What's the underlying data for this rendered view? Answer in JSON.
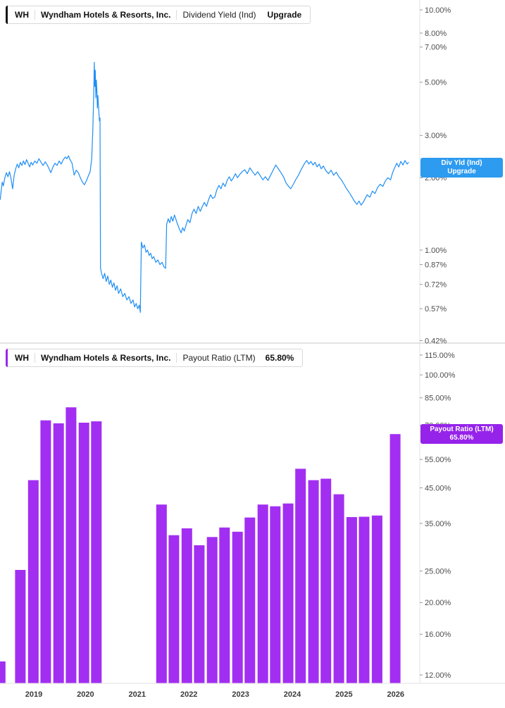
{
  "header_top": {
    "ticker": "WH",
    "company": "Wyndham Hotels & Resorts, Inc.",
    "metric": "Dividend Yield (Ind)",
    "action": "Upgrade"
  },
  "header_bottom": {
    "ticker": "WH",
    "company": "Wyndham Hotels & Resorts, Inc.",
    "metric": "Payout Ratio (LTM)",
    "value": "65.80%"
  },
  "badges": {
    "div_yld": {
      "line1": "Div Yld (Ind)",
      "line2": "Upgrade",
      "color": "#2d9bf0"
    },
    "payout": {
      "line1": "Payout Ratio (LTM)",
      "line2": "65.80%",
      "color": "#9623ea"
    }
  },
  "chart_data": [
    {
      "type": "line",
      "title": "WH Wyndham Hotels & Resorts, Inc. Dividend Yield (Ind)",
      "x_axis": {
        "ticks": [
          2019,
          2020,
          2021,
          2022,
          2023,
          2024,
          2025,
          2026
        ]
      },
      "y_axis": {
        "scale": "log",
        "side": "right",
        "unit": "%",
        "tick_values": [
          10,
          8,
          7,
          5,
          3,
          2,
          1,
          0.87,
          0.72,
          0.57,
          0.42
        ],
        "tick_labels": [
          "10.00%",
          "8.00%",
          "7.00%",
          "5.00%",
          "3.00%",
          "2.00%",
          "1.00%",
          "0.87%",
          "0.72%",
          "0.57%",
          "0.42%"
        ]
      },
      "series": [
        {
          "name": "Dividend Yield (Ind)",
          "color": "#1e8ef5",
          "points": [
            [
              2018.35,
              1.62
            ],
            [
              2018.37,
              1.78
            ],
            [
              2018.39,
              1.92
            ],
            [
              2018.41,
              1.85
            ],
            [
              2018.44,
              2.0
            ],
            [
              2018.47,
              2.1
            ],
            [
              2018.5,
              2.02
            ],
            [
              2018.53,
              2.12
            ],
            [
              2018.56,
              1.98
            ],
            [
              2018.59,
              1.8
            ],
            [
              2018.62,
              2.05
            ],
            [
              2018.65,
              2.18
            ],
            [
              2018.68,
              2.28
            ],
            [
              2018.71,
              2.2
            ],
            [
              2018.74,
              2.32
            ],
            [
              2018.77,
              2.25
            ],
            [
              2018.8,
              2.35
            ],
            [
              2018.83,
              2.27
            ],
            [
              2018.86,
              2.38
            ],
            [
              2018.89,
              2.3
            ],
            [
              2018.92,
              2.22
            ],
            [
              2018.95,
              2.32
            ],
            [
              2018.98,
              2.26
            ],
            [
              2019.02,
              2.35
            ],
            [
              2019.06,
              2.3
            ],
            [
              2019.1,
              2.4
            ],
            [
              2019.14,
              2.32
            ],
            [
              2019.18,
              2.25
            ],
            [
              2019.22,
              2.33
            ],
            [
              2019.26,
              2.26
            ],
            [
              2019.3,
              2.17
            ],
            [
              2019.33,
              2.1
            ],
            [
              2019.37,
              2.22
            ],
            [
              2019.41,
              2.3
            ],
            [
              2019.45,
              2.25
            ],
            [
              2019.49,
              2.35
            ],
            [
              2019.53,
              2.28
            ],
            [
              2019.57,
              2.38
            ],
            [
              2019.61,
              2.44
            ],
            [
              2019.64,
              2.4
            ],
            [
              2019.67,
              2.47
            ],
            [
              2019.7,
              2.38
            ],
            [
              2019.74,
              2.3
            ],
            [
              2019.78,
              2.05
            ],
            [
              2019.82,
              2.15
            ],
            [
              2019.86,
              2.1
            ],
            [
              2019.9,
              2.0
            ],
            [
              2019.94,
              1.92
            ],
            [
              2019.98,
              1.87
            ],
            [
              2020.02,
              1.95
            ],
            [
              2020.06,
              2.05
            ],
            [
              2020.09,
              2.12
            ],
            [
              2020.12,
              2.4
            ],
            [
              2020.14,
              3.1
            ],
            [
              2020.16,
              4.5
            ],
            [
              2020.17,
              6.05
            ],
            [
              2020.18,
              4.8
            ],
            [
              2020.19,
              5.6
            ],
            [
              2020.2,
              4.3
            ],
            [
              2020.21,
              5.1
            ],
            [
              2020.22,
              4.6
            ],
            [
              2020.23,
              3.9
            ],
            [
              2020.24,
              4.4
            ],
            [
              2020.25,
              4.0
            ],
            [
              2020.26,
              3.7
            ],
            [
              2020.27,
              3.45
            ],
            [
              2020.28,
              3.55
            ],
            [
              2020.29,
              0.84
            ],
            [
              2020.31,
              0.8
            ],
            [
              2020.34,
              0.76
            ],
            [
              2020.37,
              0.8
            ],
            [
              2020.4,
              0.74
            ],
            [
              2020.43,
              0.78
            ],
            [
              2020.46,
              0.72
            ],
            [
              2020.49,
              0.75
            ],
            [
              2020.52,
              0.7
            ],
            [
              2020.55,
              0.73
            ],
            [
              2020.58,
              0.68
            ],
            [
              2020.61,
              0.71
            ],
            [
              2020.64,
              0.66
            ],
            [
              2020.68,
              0.69
            ],
            [
              2020.72,
              0.64
            ],
            [
              2020.76,
              0.66
            ],
            [
              2020.8,
              0.62
            ],
            [
              2020.84,
              0.64
            ],
            [
              2020.88,
              0.6
            ],
            [
              2020.92,
              0.62
            ],
            [
              2020.95,
              0.58
            ],
            [
              2020.98,
              0.6
            ],
            [
              2021.01,
              0.57
            ],
            [
              2021.04,
              0.59
            ],
            [
              2021.06,
              0.55
            ],
            [
              2021.08,
              1.08
            ],
            [
              2021.11,
              1.02
            ],
            [
              2021.14,
              1.05
            ],
            [
              2021.17,
              0.98
            ],
            [
              2021.2,
              1.0
            ],
            [
              2021.23,
              0.95
            ],
            [
              2021.26,
              0.97
            ],
            [
              2021.29,
              0.92
            ],
            [
              2021.32,
              0.94
            ],
            [
              2021.36,
              0.89
            ],
            [
              2021.4,
              0.91
            ],
            [
              2021.44,
              0.87
            ],
            [
              2021.48,
              0.89
            ],
            [
              2021.52,
              0.85
            ],
            [
              2021.55,
              0.84
            ],
            [
              2021.57,
              1.28
            ],
            [
              2021.6,
              1.35
            ],
            [
              2021.63,
              1.3
            ],
            [
              2021.66,
              1.38
            ],
            [
              2021.69,
              1.32
            ],
            [
              2021.72,
              1.4
            ],
            [
              2021.75,
              1.34
            ],
            [
              2021.78,
              1.28
            ],
            [
              2021.82,
              1.22
            ],
            [
              2021.85,
              1.18
            ],
            [
              2021.88,
              1.24
            ],
            [
              2021.91,
              1.2
            ],
            [
              2021.95,
              1.28
            ],
            [
              2021.98,
              1.34
            ],
            [
              2022.02,
              1.3
            ],
            [
              2022.06,
              1.42
            ],
            [
              2022.1,
              1.48
            ],
            [
              2022.14,
              1.42
            ],
            [
              2022.18,
              1.52
            ],
            [
              2022.22,
              1.45
            ],
            [
              2022.26,
              1.52
            ],
            [
              2022.3,
              1.58
            ],
            [
              2022.34,
              1.52
            ],
            [
              2022.38,
              1.62
            ],
            [
              2022.42,
              1.7
            ],
            [
              2022.46,
              1.64
            ],
            [
              2022.5,
              1.66
            ],
            [
              2022.54,
              1.78
            ],
            [
              2022.58,
              1.86
            ],
            [
              2022.62,
              1.8
            ],
            [
              2022.66,
              1.9
            ],
            [
              2022.7,
              1.84
            ],
            [
              2022.74,
              1.95
            ],
            [
              2022.78,
              2.02
            ],
            [
              2022.82,
              1.94
            ],
            [
              2022.86,
              2.0
            ],
            [
              2022.9,
              2.08
            ],
            [
              2022.94,
              2.0
            ],
            [
              2022.98,
              2.06
            ],
            [
              2023.03,
              2.12
            ],
            [
              2023.08,
              2.16
            ],
            [
              2023.13,
              2.08
            ],
            [
              2023.18,
              2.2
            ],
            [
              2023.23,
              2.12
            ],
            [
              2023.28,
              2.05
            ],
            [
              2023.33,
              2.12
            ],
            [
              2023.38,
              2.04
            ],
            [
              2023.43,
              1.96
            ],
            [
              2023.48,
              2.02
            ],
            [
              2023.53,
              1.95
            ],
            [
              2023.58,
              2.05
            ],
            [
              2023.63,
              2.15
            ],
            [
              2023.68,
              2.26
            ],
            [
              2023.73,
              2.18
            ],
            [
              2023.78,
              2.1
            ],
            [
              2023.83,
              2.02
            ],
            [
              2023.88,
              1.9
            ],
            [
              2023.93,
              1.84
            ],
            [
              2023.97,
              1.8
            ],
            [
              2024.02,
              1.88
            ],
            [
              2024.07,
              1.97
            ],
            [
              2024.12,
              2.05
            ],
            [
              2024.16,
              2.14
            ],
            [
              2024.2,
              2.22
            ],
            [
              2024.24,
              2.3
            ],
            [
              2024.28,
              2.36
            ],
            [
              2024.32,
              2.28
            ],
            [
              2024.36,
              2.34
            ],
            [
              2024.4,
              2.26
            ],
            [
              2024.44,
              2.32
            ],
            [
              2024.48,
              2.22
            ],
            [
              2024.52,
              2.28
            ],
            [
              2024.56,
              2.18
            ],
            [
              2024.6,
              2.24
            ],
            [
              2024.65,
              2.14
            ],
            [
              2024.7,
              2.08
            ],
            [
              2024.75,
              2.15
            ],
            [
              2024.8,
              2.05
            ],
            [
              2024.85,
              2.11
            ],
            [
              2024.9,
              2.02
            ],
            [
              2024.95,
              1.96
            ],
            [
              2025.0,
              1.88
            ],
            [
              2025.05,
              1.8
            ],
            [
              2025.1,
              1.74
            ],
            [
              2025.15,
              1.67
            ],
            [
              2025.2,
              1.6
            ],
            [
              2025.25,
              1.55
            ],
            [
              2025.29,
              1.6
            ],
            [
              2025.33,
              1.54
            ],
            [
              2025.37,
              1.58
            ],
            [
              2025.41,
              1.64
            ],
            [
              2025.45,
              1.7
            ],
            [
              2025.5,
              1.66
            ],
            [
              2025.55,
              1.76
            ],
            [
              2025.6,
              1.72
            ],
            [
              2025.65,
              1.82
            ],
            [
              2025.7,
              1.88
            ],
            [
              2025.75,
              1.84
            ],
            [
              2025.8,
              1.94
            ],
            [
              2025.85,
              2.0
            ],
            [
              2025.9,
              1.96
            ],
            [
              2025.94,
              2.1
            ],
            [
              2025.98,
              2.2
            ],
            [
              2026.02,
              2.3
            ],
            [
              2026.06,
              2.22
            ],
            [
              2026.1,
              2.34
            ],
            [
              2026.14,
              2.26
            ],
            [
              2026.18,
              2.36
            ],
            [
              2026.22,
              2.28
            ],
            [
              2026.25,
              2.32
            ]
          ]
        }
      ]
    },
    {
      "type": "bar",
      "title": "WH Wyndham Hotels & Resorts, Inc. Payout Ratio (LTM)",
      "latest_value": "65.80%",
      "color": "#a22ef2",
      "y_axis": {
        "scale": "log",
        "side": "right",
        "unit": "%",
        "tick_values": [
          115,
          100,
          85,
          70,
          55,
          45,
          35,
          25,
          20,
          16,
          12
        ],
        "tick_labels": [
          "115.00%",
          "100.00%",
          "85.00%",
          "70.00%",
          "55.00%",
          "45.00%",
          "35.00%",
          "25.00%",
          "20.00%",
          "16.00%",
          "12.00%"
        ]
      },
      "bars": [
        [
          2018.35,
          13.2
        ],
        [
          2018.74,
          25.2
        ],
        [
          2018.99,
          47.5
        ],
        [
          2019.23,
          72.5
        ],
        [
          2019.48,
          71.0
        ],
        [
          2019.72,
          79.5
        ],
        [
          2019.97,
          71.3
        ],
        [
          2020.21,
          72.0
        ],
        [
          2021.47,
          40.0
        ],
        [
          2021.71,
          32.2
        ],
        [
          2021.96,
          33.8
        ],
        [
          2022.2,
          30.0
        ],
        [
          2022.45,
          31.8
        ],
        [
          2022.69,
          34.0
        ],
        [
          2022.94,
          33.0
        ],
        [
          2023.18,
          36.5
        ],
        [
          2023.43,
          40.0
        ],
        [
          2023.67,
          39.5
        ],
        [
          2023.92,
          40.3
        ],
        [
          2024.16,
          51.5
        ],
        [
          2024.41,
          47.5
        ],
        [
          2024.65,
          48.0
        ],
        [
          2024.9,
          43.0
        ],
        [
          2025.15,
          36.6
        ],
        [
          2025.39,
          36.7
        ],
        [
          2025.64,
          37.0
        ],
        [
          2025.99,
          65.8
        ]
      ]
    }
  ]
}
